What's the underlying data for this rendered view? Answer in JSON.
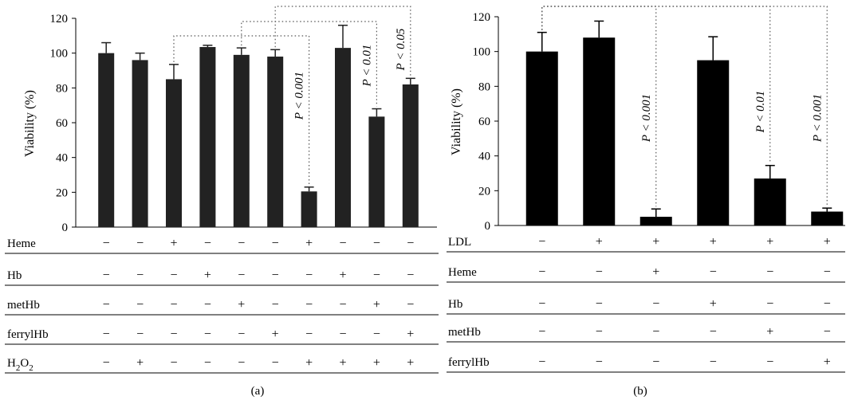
{
  "chart_data": [
    {
      "type": "bar",
      "panel_label": "(a)",
      "ylabel": "Viability (%)",
      "ylim": [
        0,
        120
      ],
      "yticks": [
        0,
        20,
        40,
        60,
        80,
        100,
        120
      ],
      "bar_color": "#222222",
      "values": [
        100,
        96,
        85,
        103.5,
        99,
        98,
        20.5,
        103,
        63.5,
        82
      ],
      "errors": [
        6,
        4,
        8.5,
        1,
        4,
        4,
        2.5,
        13,
        4.5,
        3.5
      ],
      "conditions": [
        {
          "label": "Heme",
          "symbols": [
            "−",
            "−",
            "+",
            "−",
            "−",
            "−",
            "+",
            "−",
            "−",
            "−"
          ]
        },
        {
          "label": "Hb",
          "symbols": [
            "−",
            "−",
            "−",
            "+",
            "−",
            "−",
            "−",
            "+",
            "−",
            "−"
          ]
        },
        {
          "label": "metHb",
          "symbols": [
            "−",
            "−",
            "−",
            "−",
            "+",
            "−",
            "−",
            "−",
            "+",
            "−"
          ]
        },
        {
          "label": "ferrylHb",
          "symbols": [
            "−",
            "−",
            "−",
            "−",
            "−",
            "+",
            "−",
            "−",
            "−",
            "+"
          ]
        },
        {
          "label": "H2O2",
          "label_main": "H",
          "label_sub1": "2",
          "label_mid": "O",
          "label_sub2": "2",
          "symbols": [
            "−",
            "+",
            "−",
            "−",
            "−",
            "−",
            "+",
            "+",
            "+",
            "+"
          ]
        }
      ],
      "comparisons": [
        {
          "from": 3,
          "to": 7,
          "text": "P < 0.001"
        },
        {
          "from": 5,
          "to": 9,
          "text": "P < 0.01"
        },
        {
          "from": 6,
          "to": 10,
          "text": "P < 0.05"
        }
      ]
    },
    {
      "type": "bar",
      "panel_label": "(b)",
      "ylabel": "Viability (%)",
      "ylim": [
        0,
        120
      ],
      "yticks": [
        0,
        20,
        40,
        60,
        80,
        100,
        120
      ],
      "bar_color": "#000000",
      "values": [
        100,
        108,
        5,
        95,
        27,
        8
      ],
      "errors": [
        11,
        9.5,
        4.5,
        13.5,
        7.5,
        2
      ],
      "conditions": [
        {
          "label": "LDL",
          "symbols": [
            "−",
            "+",
            "+",
            "+",
            "+",
            "+"
          ]
        },
        {
          "label": "Heme",
          "symbols": [
            "−",
            "−",
            "+",
            "−",
            "−",
            "−"
          ]
        },
        {
          "label": "Hb",
          "symbols": [
            "−",
            "−",
            "−",
            "+",
            "−",
            "−"
          ]
        },
        {
          "label": "metHb",
          "symbols": [
            "−",
            "−",
            "−",
            "−",
            "+",
            "−"
          ]
        },
        {
          "label": "ferrylHb",
          "symbols": [
            "−",
            "−",
            "−",
            "−",
            "−",
            "+"
          ]
        }
      ],
      "comparisons": [
        {
          "from": 1,
          "to": 3,
          "text": "P < 0.001"
        },
        {
          "from": 1,
          "to": 5,
          "text": "P < 0.01"
        },
        {
          "from": 1,
          "to": 6,
          "text": "P < 0.001"
        }
      ]
    }
  ]
}
